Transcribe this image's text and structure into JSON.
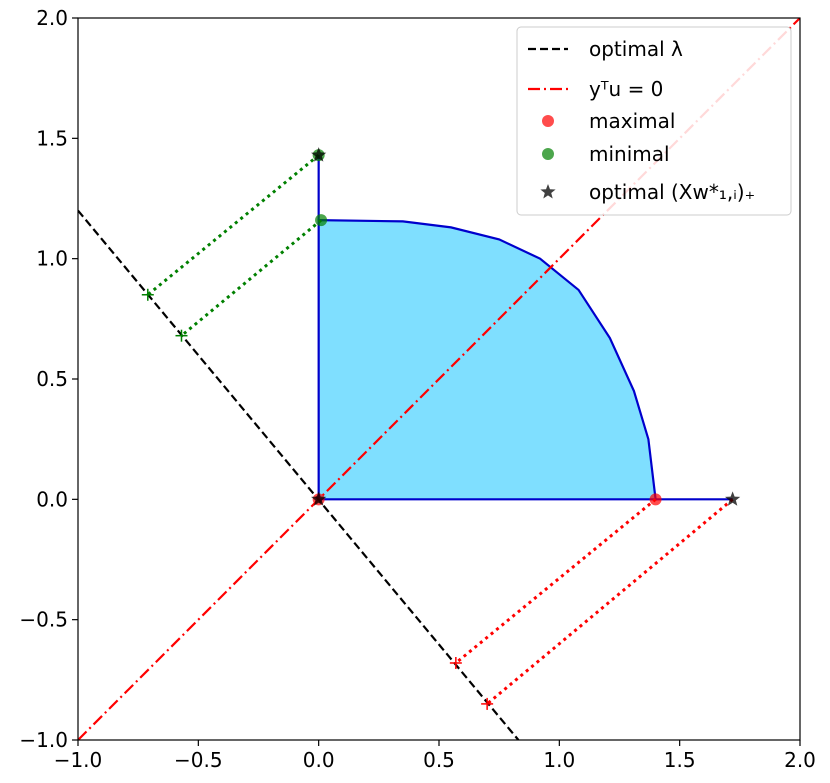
{
  "chart_data": {
    "type": "line",
    "xlim": [
      -1.0,
      2.0
    ],
    "ylim": [
      -1.0,
      2.0
    ],
    "x_ticks": [
      "−1.0",
      "−0.5",
      "0.0",
      "0.5",
      "1.0",
      "1.5",
      "2.0"
    ],
    "y_ticks": [
      "−1.0",
      "−0.5",
      "0.0",
      "0.5",
      "1.0",
      "1.5",
      "2.0"
    ],
    "grid": false,
    "legend_position": "top-right",
    "legend": [
      {
        "label": "optimal λ",
        "style": "dashed",
        "color": "#000000"
      },
      {
        "label": "yᵀu = 0",
        "style": "dashdot",
        "color": "#ff0000"
      },
      {
        "label": "maximal",
        "marker": "circle",
        "color": "#ff0000"
      },
      {
        "label": "minimal",
        "marker": "circle",
        "color": "#008000"
      },
      {
        "label": "optimal (Xw*₁,ᵢ)₊",
        "marker": "star",
        "color": "#000000"
      }
    ],
    "region": {
      "fill": "#7fdfff",
      "edge": "#0000cc",
      "boundary": [
        [
          0,
          0
        ],
        [
          1.4,
          0
        ],
        [
          1.37,
          0.25
        ],
        [
          1.31,
          0.45
        ],
        [
          1.21,
          0.67
        ],
        [
          1.08,
          0.87
        ],
        [
          0.92,
          1.0
        ],
        [
          0.75,
          1.08
        ],
        [
          0.55,
          1.13
        ],
        [
          0.35,
          1.155
        ],
        [
          0.0,
          1.16
        ],
        [
          0,
          0
        ]
      ],
      "extra_edges": [
        [
          [
            1.4,
            0.0
          ],
          [
            1.72,
            0.0
          ]
        ],
        [
          [
            0.0,
            1.16
          ],
          [
            0.0,
            1.43
          ]
        ]
      ]
    },
    "optimal_lambda_line": [
      [
        -1.0,
        1.2
      ],
      [
        0.83,
        -1.0
      ]
    ],
    "ytu_zero_line": [
      [
        -1.0,
        -1.0
      ],
      [
        2.0,
        2.0
      ]
    ],
    "maximal_points": [
      [
        1.4,
        0.0
      ],
      [
        0.0,
        0.0
      ]
    ],
    "minimal_points": [
      [
        0.01,
        1.16
      ],
      [
        0.0,
        1.43
      ]
    ],
    "optimal_points": [
      [
        1.72,
        0.0
      ],
      [
        0.0,
        1.43
      ],
      [
        0.0,
        0.0
      ]
    ],
    "red_dotted_projections": [
      [
        [
          1.4,
          0.0
        ],
        [
          0.57,
          -0.68
        ]
      ],
      [
        [
          1.72,
          0.0
        ],
        [
          0.7,
          -0.85
        ]
      ]
    ],
    "green_dotted_projections": [
      [
        [
          0.0,
          1.43
        ],
        [
          -0.71,
          0.85
        ]
      ],
      [
        [
          0.01,
          1.16
        ],
        [
          -0.57,
          0.68
        ]
      ]
    ],
    "red_plus_markers": [
      [
        0.57,
        -0.68
      ],
      [
        0.7,
        -0.85
      ]
    ],
    "green_plus_markers": [
      [
        -0.71,
        0.85
      ],
      [
        -0.57,
        0.68
      ]
    ]
  }
}
